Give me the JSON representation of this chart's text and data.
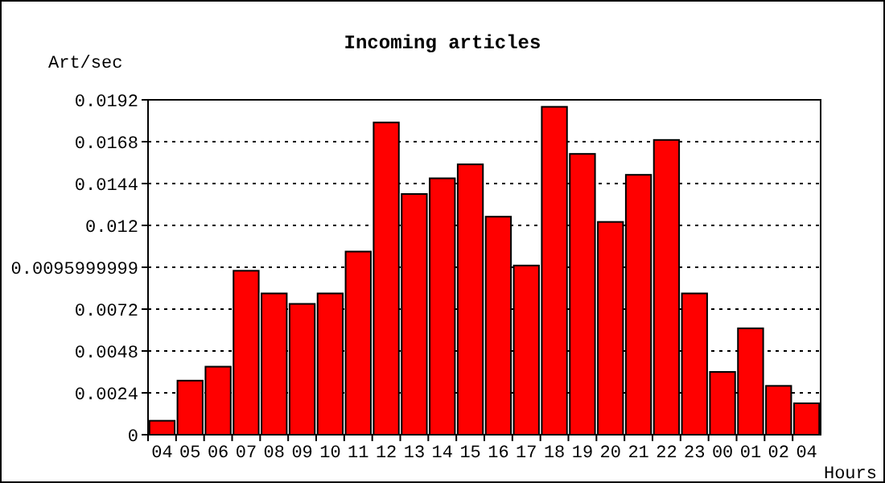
{
  "chart_data": {
    "type": "bar",
    "title": "Incoming articles",
    "xlabel": "Hours",
    "ylabel": "Art/sec",
    "categories": [
      "04",
      "05",
      "06",
      "07",
      "08",
      "09",
      "10",
      "11",
      "12",
      "13",
      "14",
      "15",
      "16",
      "17",
      "18",
      "19",
      "20",
      "21",
      "22",
      "23",
      "00",
      "01",
      "02",
      "04"
    ],
    "values": [
      0.0008,
      0.0031,
      0.0039,
      0.0094,
      0.0081,
      0.0075,
      0.0081,
      0.0105,
      0.0179,
      0.0138,
      0.0147,
      0.0155,
      0.0125,
      0.0097,
      0.0188,
      0.0161,
      0.0122,
      0.0149,
      0.0169,
      0.0081,
      0.0036,
      0.0061,
      0.0028,
      0.0018
    ],
    "color": "#ff0000",
    "ylim": [
      0,
      0.0192
    ],
    "yticks": [
      0,
      0.0024,
      0.0048,
      0.0072,
      0.0095999999,
      0.012,
      0.0144,
      0.0168,
      0.0192
    ],
    "grid": "y"
  }
}
